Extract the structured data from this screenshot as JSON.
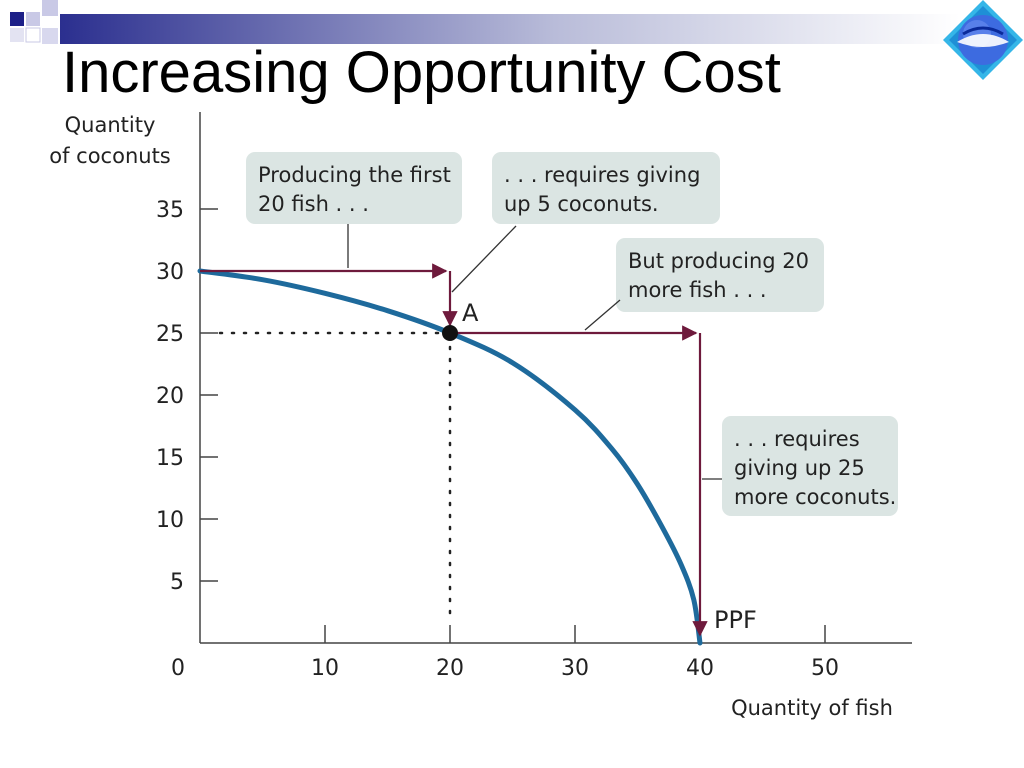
{
  "slide": {
    "title": "Increasing Opportunity Cost",
    "logo_icon": "globe-diamond-logo"
  },
  "colors": {
    "curve": "#1e6a9c",
    "arrow": "#6e1a3c",
    "callout_bg": "#dbe5e3",
    "header_bar": "#2b2f8f",
    "logo": "#2a5cd6"
  },
  "chart_data": {
    "type": "line",
    "title": "",
    "xlabel": "Quantity of fish",
    "ylabel_lines": [
      "Quantity",
      "of coconuts"
    ],
    "xlim": [
      0,
      57
    ],
    "ylim": [
      0,
      35
    ],
    "x_ticks": [
      10,
      20,
      30,
      40,
      50
    ],
    "x_tick_labels": [
      "10",
      "20",
      "30",
      "40",
      "50"
    ],
    "y_ticks": [
      5,
      10,
      15,
      20,
      25,
      30,
      35
    ],
    "y_tick_labels": [
      "5",
      "10",
      "15",
      "20",
      "25",
      "30",
      "35"
    ],
    "origin_label": "0",
    "series": [
      {
        "name": "PPF",
        "x": [
          0,
          5,
          10,
          15,
          20,
          25,
          30,
          33,
          35,
          37,
          38.5,
          39.5,
          40
        ],
        "y": [
          30,
          29.3,
          28.2,
          26.8,
          25,
          22.6,
          18.8,
          15.6,
          12.8,
          9.3,
          6.3,
          3.5,
          0
        ]
      }
    ],
    "points": [
      {
        "label": "A",
        "x": 20,
        "y": 25
      }
    ],
    "curve_label": "PPF",
    "moves": [
      {
        "from": [
          0,
          30
        ],
        "to": [
          20,
          30
        ]
      },
      {
        "from": [
          20,
          30
        ],
        "to": [
          20,
          25
        ]
      },
      {
        "from": [
          20,
          25
        ],
        "to": [
          40,
          25
        ]
      },
      {
        "from": [
          40,
          25
        ],
        "to": [
          40,
          0
        ]
      }
    ],
    "callouts": [
      {
        "lines": [
          "Producing the first",
          "20 fish . . ."
        ]
      },
      {
        "lines": [
          ". . . requires giving",
          "up 5 coconuts."
        ]
      },
      {
        "lines": [
          "But producing 20",
          "more fish . . ."
        ]
      },
      {
        "lines": [
          ". . . requires",
          "giving up 25",
          "more coconuts."
        ]
      }
    ]
  }
}
